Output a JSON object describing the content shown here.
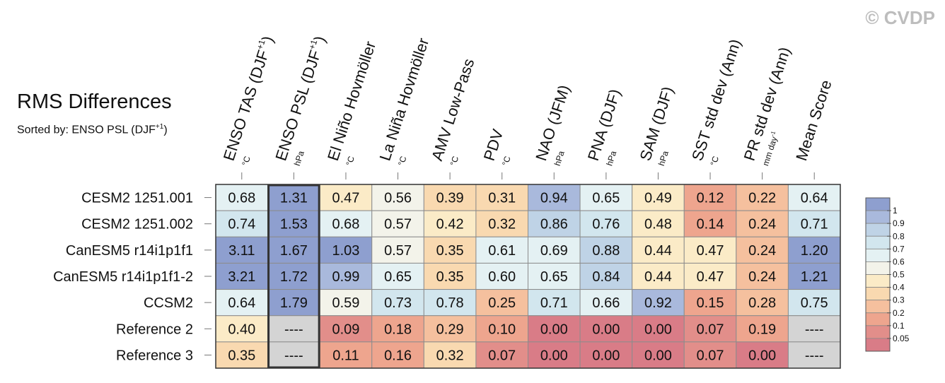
{
  "watermark": "© CVDP",
  "chart_data": {
    "type": "heatmap",
    "title": "RMS Differences",
    "subtitle": {
      "prefix": "Sorted by: ENSO PSL (DJF",
      "sup": "+1",
      "suffix": ")"
    },
    "columns": [
      {
        "label": "ENSO TAS (DJF",
        "sup": "+1",
        "close": ")",
        "unit": "°C"
      },
      {
        "label": "ENSO PSL (DJF",
        "sup": "+1",
        "close": ")",
        "unit": "hPa"
      },
      {
        "label": "El Niño Hovmöller",
        "unit": "°C"
      },
      {
        "label": "La Niña Hovmöller",
        "unit": "°C"
      },
      {
        "label": "AMV Low-Pass",
        "unit": "°C"
      },
      {
        "label": "PDV",
        "unit": "°C"
      },
      {
        "label": "NAO (JFM)",
        "unit": "hPa"
      },
      {
        "label": "PNA (DJF)",
        "unit": "hPa"
      },
      {
        "label": "SAM (DJF)",
        "unit": "hPa"
      },
      {
        "label": "SST std dev (Ann)",
        "unit": "°C"
      },
      {
        "label": "PR std dev (Ann)",
        "unit": "mm day",
        "unit_sup": "-1"
      },
      {
        "label": "Mean Score",
        "unit": ""
      }
    ],
    "rows": [
      "CESM2 1251.001",
      "CESM2 1251.002",
      "CanESM5 r14i1p1f1",
      "CanESM5 r14i1p1f1-2",
      "CCSM2",
      "Reference 2",
      "Reference 3"
    ],
    "values": [
      [
        0.68,
        1.31,
        0.47,
        0.56,
        0.39,
        0.31,
        0.94,
        0.65,
        0.49,
        0.12,
        0.22,
        0.64
      ],
      [
        0.74,
        1.53,
        0.68,
        0.57,
        0.42,
        0.32,
        0.86,
        0.76,
        0.48,
        0.14,
        0.24,
        0.71
      ],
      [
        3.11,
        1.67,
        1.03,
        0.57,
        0.35,
        0.61,
        0.69,
        0.88,
        0.44,
        0.47,
        0.24,
        1.2
      ],
      [
        3.21,
        1.72,
        0.99,
        0.65,
        0.35,
        0.6,
        0.65,
        0.84,
        0.44,
        0.47,
        0.24,
        1.21
      ],
      [
        0.64,
        1.79,
        0.59,
        0.73,
        0.78,
        0.25,
        0.71,
        0.66,
        0.92,
        0.15,
        0.28,
        0.75
      ],
      [
        0.4,
        null,
        0.09,
        0.18,
        0.29,
        0.1,
        0.0,
        0.0,
        0.0,
        0.07,
        0.19,
        null
      ],
      [
        0.35,
        null,
        0.11,
        0.16,
        0.32,
        0.07,
        0.0,
        0.0,
        0.0,
        0.07,
        0.0,
        null
      ]
    ],
    "missing_label": "----",
    "highlighted_column": 1,
    "legend": {
      "placement": "right",
      "ticks": [
        "1",
        "0.9",
        "0.8",
        "0.7",
        "0.6",
        "0.5",
        "0.4",
        "0.3",
        "0.2",
        "0.1",
        "0.05"
      ],
      "bins": [
        {
          "min": 1.0,
          "color": "#8e9fcf"
        },
        {
          "min": 0.9,
          "color": "#a9b9dc"
        },
        {
          "min": 0.8,
          "color": "#bfd3e6"
        },
        {
          "min": 0.7,
          "color": "#d2e6ee"
        },
        {
          "min": 0.6,
          "color": "#e4f1f3"
        },
        {
          "min": 0.5,
          "color": "#f3f3ea"
        },
        {
          "min": 0.4,
          "color": "#fbebc7"
        },
        {
          "min": 0.3,
          "color": "#f9d9b0"
        },
        {
          "min": 0.2,
          "color": "#f5c09e"
        },
        {
          "min": 0.1,
          "color": "#eea58e"
        },
        {
          "min": 0.05,
          "color": "#e28e8a"
        },
        {
          "min": -1,
          "color": "#d97c87"
        }
      ]
    },
    "missing_color": "#d4d4d4"
  }
}
